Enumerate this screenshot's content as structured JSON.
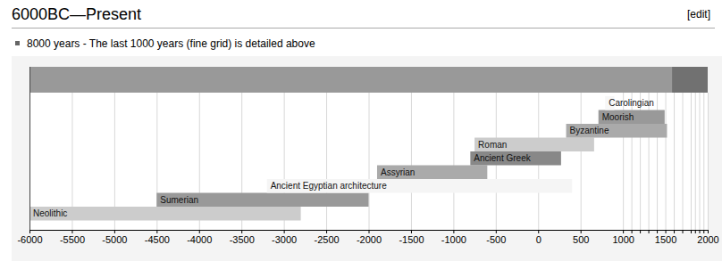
{
  "chart_data": {
    "type": "timeline",
    "title": "6000BC—Present",
    "subtitle": "8000 years - The last 1000 years (fine grid) is detailed above",
    "annotations": [
      "[edit]"
    ],
    "orientation": "horizontal",
    "grid": true,
    "xlim": [
      -6000,
      2000
    ],
    "xticks": [
      -6000,
      -5500,
      -5000,
      -4500,
      -4000,
      -3500,
      -3000,
      -2500,
      -2000,
      -1500,
      -1000,
      -500,
      0,
      500,
      1000,
      1500,
      2000
    ],
    "fine_grid": [
      1100,
      1200,
      1300,
      1400,
      1600,
      1700,
      1800,
      1850,
      1900,
      1950
    ],
    "span": {
      "start": -6000,
      "end": 2000,
      "color": "#999999"
    },
    "detail_span": {
      "start": 1580,
      "end": 2000,
      "color": "#717171"
    },
    "categories": [
      "Neolithic",
      "Sumerian",
      "Ancient Egyptian architecture",
      "Assyrian",
      "Ancient Greek",
      "Roman",
      "Byzantine",
      "Moorish",
      "Carolingian"
    ],
    "starts": [
      -6000,
      -4500,
      -3200,
      -1900,
      -800,
      -750,
      330,
      711,
      790
    ],
    "ends": [
      -2800,
      -2000,
      400,
      -600,
      270,
      660,
      1520,
      1492,
      900
    ],
    "colors": [
      "#cccccc",
      "#999999",
      "#f5f5f5",
      "#aaaaaa",
      "#888888",
      "#cccccc",
      "#aaaaaa",
      "#999999",
      "#f7f7f7"
    ]
  }
}
